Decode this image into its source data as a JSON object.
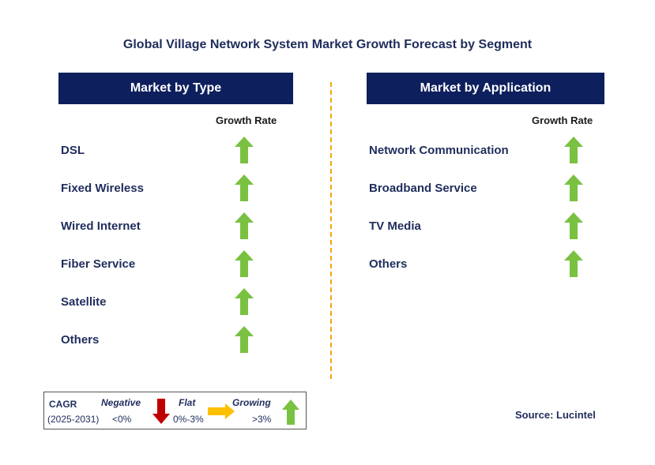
{
  "title": "Global Village Network System Market Growth Forecast by Segment",
  "colors": {
    "header_bg": "#0d1f5c",
    "text": "#1f2d5c",
    "growing": "#7ac142",
    "negative": "#c00000",
    "flat": "#ffc000",
    "divider": "#f0a800"
  },
  "left_panel": {
    "header": "Market by Type",
    "growth_label": "Growth Rate",
    "items": [
      {
        "label": "DSL",
        "trend": "growing"
      },
      {
        "label": "Fixed Wireless",
        "trend": "growing"
      },
      {
        "label": "Wired Internet",
        "trend": "growing"
      },
      {
        "label": "Fiber Service",
        "trend": "growing"
      },
      {
        "label": "Satellite",
        "trend": "growing"
      },
      {
        "label": "Others",
        "trend": "growing"
      }
    ]
  },
  "right_panel": {
    "header": "Market by Application",
    "growth_label": "Growth Rate",
    "items": [
      {
        "label": "Network Communication",
        "trend": "growing"
      },
      {
        "label": "Broadband Service",
        "trend": "growing"
      },
      {
        "label": "TV Media",
        "trend": "growing"
      },
      {
        "label": "Others",
        "trend": "growing"
      }
    ]
  },
  "legend": {
    "cagr": "CAGR",
    "period": "(2025-2031)",
    "negative_label": "Negative",
    "negative_value": "<0%",
    "flat_label": "Flat",
    "flat_value": "0%-3%",
    "growing_label": "Growing",
    "growing_value": ">3%"
  },
  "source": "Source: Lucintel"
}
